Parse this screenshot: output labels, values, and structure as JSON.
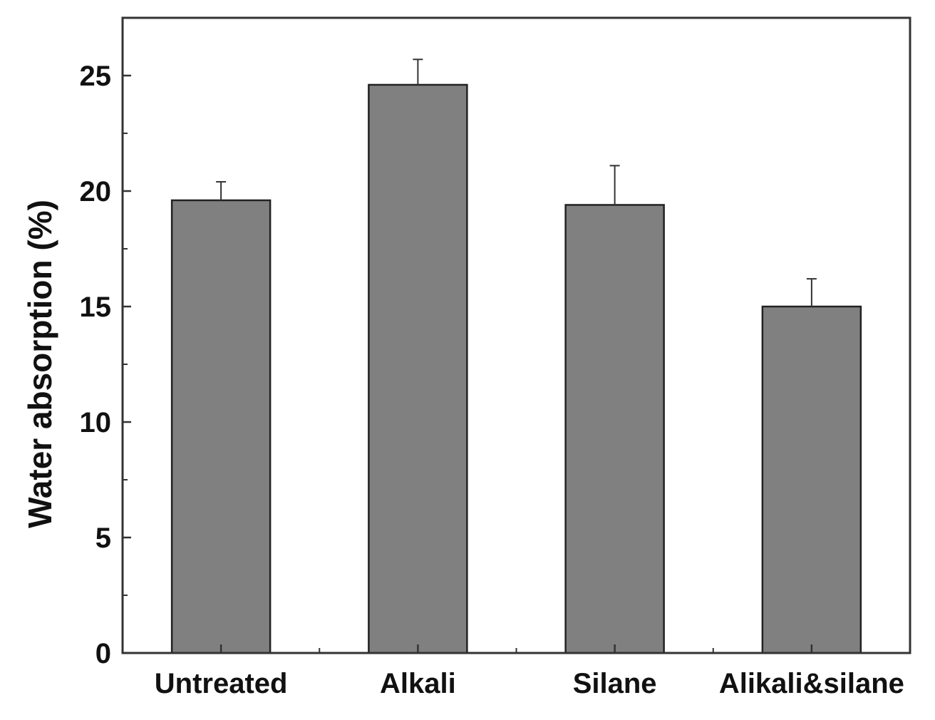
{
  "chart_data": {
    "type": "bar",
    "title": "",
    "xlabel": "",
    "ylabel": "Water absorption (%)",
    "categories": [
      "Untreated",
      "Alkali",
      "Silane",
      "Alikali&silane"
    ],
    "values": [
      19.6,
      24.6,
      19.4,
      15.0
    ],
    "error_upper": [
      0.8,
      1.1,
      1.7,
      1.2
    ],
    "ylim": [
      0,
      27.5
    ],
    "yticks": [
      0,
      5,
      10,
      15,
      20,
      25
    ],
    "ytick_labels": [
      "0",
      "5",
      "10",
      "15",
      "20",
      "25"
    ],
    "grid": false,
    "legend": "none",
    "bar_color": "#808080",
    "edge_color": "#222222"
  }
}
